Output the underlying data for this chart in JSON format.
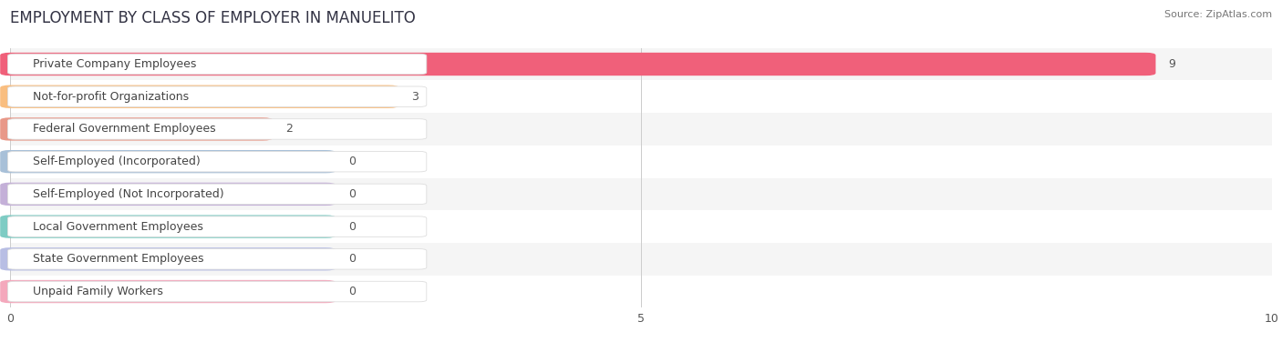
{
  "title": "EMPLOYMENT BY CLASS OF EMPLOYER IN MANUELITO",
  "source": "Source: ZipAtlas.com",
  "categories": [
    "Private Company Employees",
    "Not-for-profit Organizations",
    "Federal Government Employees",
    "Self-Employed (Incorporated)",
    "Self-Employed (Not Incorporated)",
    "Local Government Employees",
    "State Government Employees",
    "Unpaid Family Workers"
  ],
  "values": [
    9,
    3,
    2,
    0,
    0,
    0,
    0,
    0
  ],
  "bar_colors": [
    "#F0607A",
    "#F9BE80",
    "#E89888",
    "#A8C0D8",
    "#C4B0D8",
    "#7ECCC4",
    "#B8BEE4",
    "#F4A8BC"
  ],
  "label_box_colors": [
    "#FADADD",
    "#FEF0DC",
    "#F8DDD8",
    "#DDE8F4",
    "#EAE4F4",
    "#D4EFEC",
    "#E4E8F8",
    "#FCE4EC"
  ],
  "xlim": [
    0,
    10
  ],
  "xticks": [
    0,
    5,
    10
  ],
  "background_color": "#FFFFFF",
  "row_bg_odd": "#F5F5F5",
  "row_bg_even": "#FFFFFF",
  "title_fontsize": 12,
  "label_fontsize": 9,
  "value_fontsize": 9,
  "min_bar_display": 2.5
}
